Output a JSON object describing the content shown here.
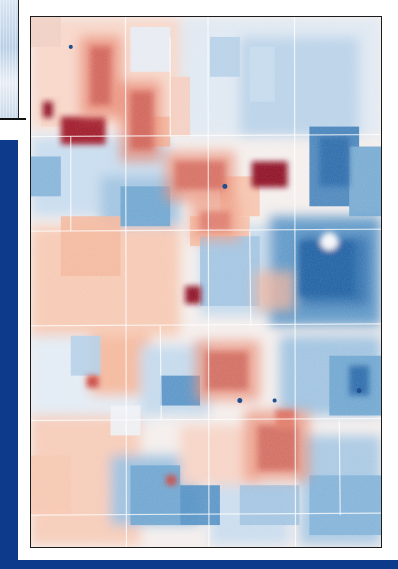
{
  "image": {
    "subject": "",
    "colormap": {
      "negative": "#08306b",
      "mid_negative": "#6baed6",
      "neutral": "#f7f7f7",
      "mid_positive": "#f4a582",
      "positive": "#67001f"
    },
    "frame_color": "#1b1b1b",
    "slide_background": "#0d3a8a"
  }
}
